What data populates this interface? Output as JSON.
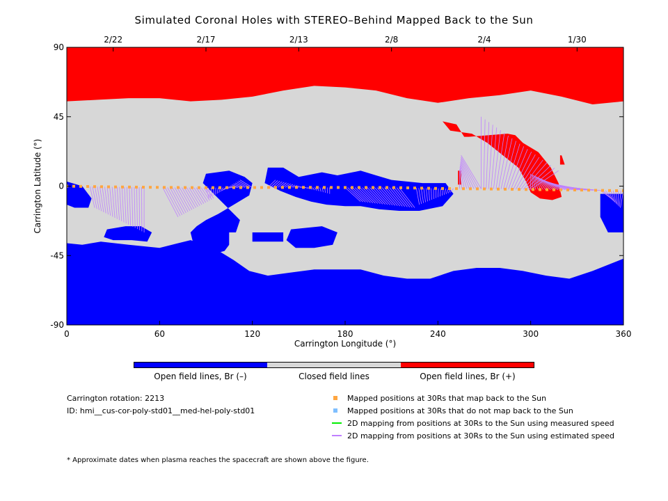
{
  "title": "Simulated Coronal Holes with STEREO–Behind Mapped Back to the Sun",
  "chart_data": {
    "type": "heatmap",
    "xlabel": "Carrington Longitude (°)",
    "ylabel": "Carrington Latitude (°)",
    "xlim": [
      0,
      360
    ],
    "ylim": [
      -90,
      90
    ],
    "x_ticks": [
      0,
      60,
      120,
      180,
      240,
      300,
      360
    ],
    "y_ticks": [
      -90,
      -45,
      0,
      45,
      90
    ],
    "top_axis_dates": [
      {
        "lon": 30,
        "label": "2/22"
      },
      {
        "lon": 90,
        "label": "2/17"
      },
      {
        "lon": 150,
        "label": "2/13"
      },
      {
        "lon": 210,
        "label": "2/8"
      },
      {
        "lon": 270,
        "label": "2/4"
      },
      {
        "lon": 330,
        "label": "1/30"
      }
    ],
    "colors": {
      "negative": "#0000ff",
      "closed": "#d7d7d7",
      "positive": "#ff0000",
      "mapped": "#ffa640",
      "unmapped": "#7fbfff",
      "measured_line": "#00ee00",
      "estimated_line": "#bf80ff"
    },
    "orbit_track": [
      [
        0,
        0
      ],
      [
        30,
        -0.5
      ],
      [
        60,
        -0.8
      ],
      [
        90,
        -1
      ],
      [
        120,
        -0.9
      ],
      [
        150,
        -0.8
      ],
      [
        180,
        -0.9
      ],
      [
        210,
        -0.9
      ],
      [
        240,
        -1.5
      ],
      [
        270,
        -1.8
      ],
      [
        300,
        -2.2
      ],
      [
        330,
        -2.5
      ],
      [
        360,
        -3
      ]
    ],
    "positive_regions": [
      [
        [
          0,
          90
        ],
        [
          360,
          90
        ],
        [
          360,
          55
        ],
        [
          340,
          53
        ],
        [
          320,
          58
        ],
        [
          300,
          62
        ],
        [
          280,
          59
        ],
        [
          260,
          57
        ],
        [
          240,
          54
        ],
        [
          220,
          57
        ],
        [
          200,
          62
        ],
        [
          180,
          64
        ],
        [
          160,
          65
        ],
        [
          140,
          62
        ],
        [
          120,
          58
        ],
        [
          100,
          56
        ],
        [
          80,
          55
        ],
        [
          60,
          57
        ],
        [
          40,
          57
        ],
        [
          20,
          56
        ],
        [
          0,
          55
        ]
      ],
      [
        [
          243,
          42
        ],
        [
          252,
          40
        ],
        [
          257,
          32
        ],
        [
          260,
          32
        ],
        [
          273,
          33
        ],
        [
          285,
          34
        ],
        [
          290,
          33
        ],
        [
          295,
          28
        ],
        [
          305,
          22
        ],
        [
          313,
          12
        ],
        [
          318,
          2
        ],
        [
          320,
          -7
        ],
        [
          314,
          -9
        ],
        [
          306,
          -8
        ],
        [
          300,
          -4
        ],
        [
          297,
          3
        ],
        [
          292,
          12
        ],
        [
          282,
          20
        ],
        [
          272,
          28
        ],
        [
          262,
          34
        ],
        [
          248,
          36
        ]
      ],
      [
        [
          253,
          10
        ],
        [
          255,
          10
        ],
        [
          255,
          1
        ],
        [
          253,
          1
        ]
      ],
      [
        [
          319,
          20
        ],
        [
          320,
          20
        ],
        [
          322,
          14
        ],
        [
          319,
          14
        ]
      ]
    ],
    "negative_regions": [
      [
        [
          0,
          -90
        ],
        [
          360,
          -90
        ],
        [
          360,
          -47
        ],
        [
          340,
          -55
        ],
        [
          325,
          -60
        ],
        [
          310,
          -58
        ],
        [
          295,
          -55
        ],
        [
          280,
          -53
        ],
        [
          265,
          -53
        ],
        [
          250,
          -55
        ],
        [
          235,
          -60
        ],
        [
          220,
          -60
        ],
        [
          205,
          -58
        ],
        [
          190,
          -54
        ],
        [
          175,
          -54
        ],
        [
          160,
          -54
        ],
        [
          145,
          -56
        ],
        [
          130,
          -58
        ],
        [
          118,
          -55
        ],
        [
          108,
          -48
        ],
        [
          95,
          -40
        ],
        [
          80,
          -35
        ],
        [
          60,
          -40
        ],
        [
          40,
          -38
        ],
        [
          22,
          -36
        ],
        [
          10,
          -38
        ],
        [
          0,
          -37
        ]
      ],
      [
        [
          130,
          12
        ],
        [
          140,
          12
        ],
        [
          150,
          6
        ],
        [
          165,
          9
        ],
        [
          175,
          7
        ],
        [
          190,
          10
        ],
        [
          200,
          7
        ],
        [
          210,
          4
        ],
        [
          230,
          2
        ],
        [
          245,
          2
        ],
        [
          250,
          -5
        ],
        [
          243,
          -13
        ],
        [
          228,
          -16
        ],
        [
          215,
          -16
        ],
        [
          202,
          -15
        ],
        [
          190,
          -13
        ],
        [
          180,
          -13
        ],
        [
          168,
          -12
        ],
        [
          158,
          -10
        ],
        [
          148,
          -7
        ],
        [
          138,
          -3
        ],
        [
          128,
          2
        ]
      ],
      [
        [
          90,
          8
        ],
        [
          105,
          10
        ],
        [
          115,
          6
        ],
        [
          120,
          2
        ],
        [
          118,
          -6
        ],
        [
          108,
          -12
        ],
        [
          98,
          -18
        ],
        [
          90,
          -22
        ],
        [
          84,
          -26
        ],
        [
          80,
          -30
        ],
        [
          82,
          -38
        ],
        [
          88,
          -42
        ],
        [
          95,
          -44
        ],
        [
          102,
          -42
        ],
        [
          108,
          -34
        ],
        [
          112,
          -22
        ],
        [
          104,
          -14
        ],
        [
          96,
          -6
        ],
        [
          88,
          2
        ]
      ],
      [
        [
          0,
          3
        ],
        [
          10,
          0
        ],
        [
          16,
          -8
        ],
        [
          14,
          -14
        ],
        [
          5,
          -14
        ],
        [
          0,
          -12
        ]
      ],
      [
        [
          26,
          -28
        ],
        [
          38,
          -26
        ],
        [
          48,
          -26
        ],
        [
          55,
          -30
        ],
        [
          52,
          -36
        ],
        [
          42,
          -35
        ],
        [
          30,
          -35
        ],
        [
          24,
          -33
        ]
      ],
      [
        [
          345,
          -5
        ],
        [
          360,
          -5
        ],
        [
          360,
          -30
        ],
        [
          350,
          -30
        ],
        [
          345,
          -20
        ]
      ],
      [
        [
          145,
          -28
        ],
        [
          165,
          -26
        ],
        [
          175,
          -30
        ],
        [
          172,
          -38
        ],
        [
          160,
          -40
        ],
        [
          148,
          -40
        ],
        [
          142,
          -35
        ]
      ],
      [
        [
          120,
          -30
        ],
        [
          140,
          -30
        ],
        [
          140,
          -36
        ],
        [
          120,
          -36
        ]
      ]
    ],
    "closed_islands": [
      [
        [
          105,
          -30
        ],
        [
          114,
          -30
        ],
        [
          114,
          -40
        ],
        [
          105,
          -40
        ]
      ],
      [
        [
          212,
          -22
        ],
        [
          226,
          -22
        ],
        [
          226,
          -32
        ],
        [
          212,
          -32
        ]
      ]
    ]
  },
  "colorbar": {
    "labels": [
      "Open field lines, Br (–)",
      "Closed field lines",
      "Open field lines, Br (+)"
    ]
  },
  "info": {
    "rotation": "Carrington rotation: 2213",
    "id": "ID: hmi__cus-cor-poly-std01__med-hel-poly-std01"
  },
  "legend": [
    {
      "symbol": "square",
      "color": "#ffa640",
      "label": "Mapped positions at 30Rs that map back to the Sun"
    },
    {
      "symbol": "square",
      "color": "#7fbfff",
      "label": "Mapped positions at 30Rs that do not map back to the Sun"
    },
    {
      "symbol": "line",
      "color": "#00ee00",
      "label": "2D mapping from positions at 30Rs to the Sun using measured speed"
    },
    {
      "symbol": "line",
      "color": "#bf80ff",
      "label": "2D mapping from positions at 30Rs to the Sun using estimated speed"
    }
  ],
  "footnote": "* Approximate dates when plasma reaches the spacecraft are shown above the figure."
}
